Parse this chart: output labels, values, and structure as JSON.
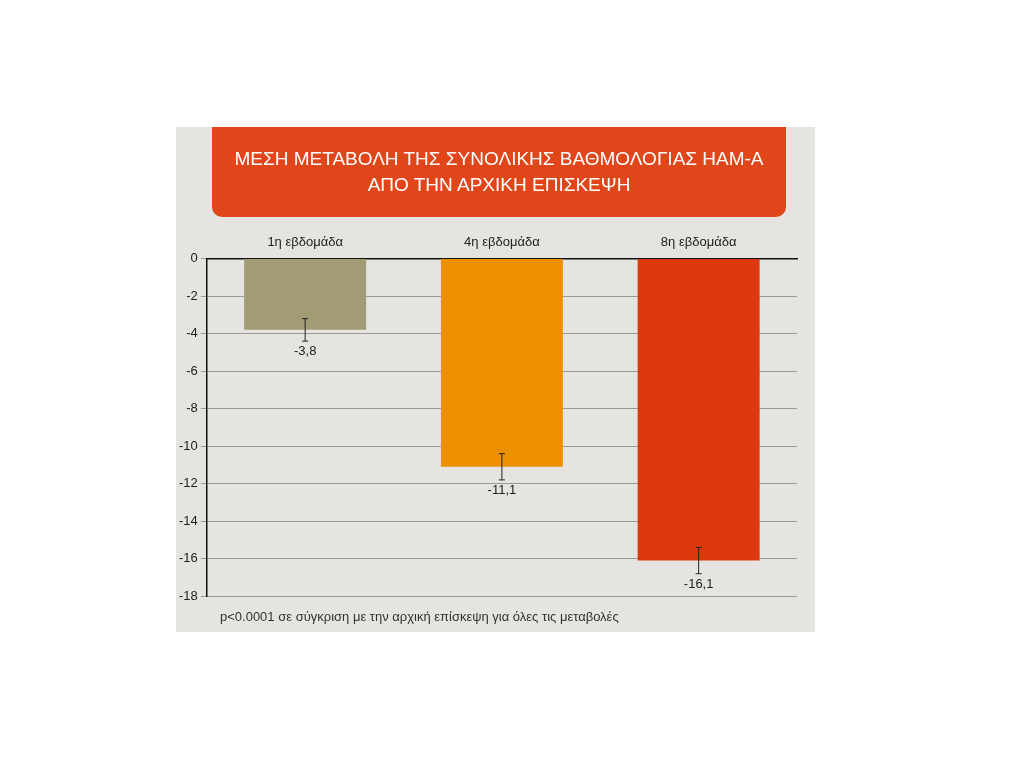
{
  "chart_data": {
    "type": "bar",
    "title": "ΜΕΣΗ ΜΕΤΑΒΟΛΗ ΤΗΣ ΣΥΝΟΛΙΚΗΣ ΒΑΘΜΟΛΟΓΙΑΣ HAM-A ΑΠΟ ΤΗΝ ΑΡΧΙΚΗ ΕΠΙΣΚΕΨΗ",
    "categories": [
      "1η εβδομάδα",
      "4η εβδομάδα",
      "8η εβδομάδα"
    ],
    "values": [
      -3.8,
      -11.1,
      -16.1
    ],
    "colors": [
      "#a19c74",
      "#ec9000",
      "#dc3a0c"
    ],
    "errors": [
      0.6,
      0.7,
      0.7
    ],
    "value_labels": [
      "-3,8",
      "-11,1",
      "-16,1"
    ],
    "ylim": [
      -18,
      0
    ],
    "yticks": [
      0,
      -2,
      -4,
      -6,
      -8,
      -10,
      -12,
      -14,
      -16,
      -18
    ],
    "grid": "y",
    "annotations": [
      "p<0.0001 σε σύγκριση με την αρχική επίσκεψη για όλες τις μεταβολές"
    ]
  }
}
